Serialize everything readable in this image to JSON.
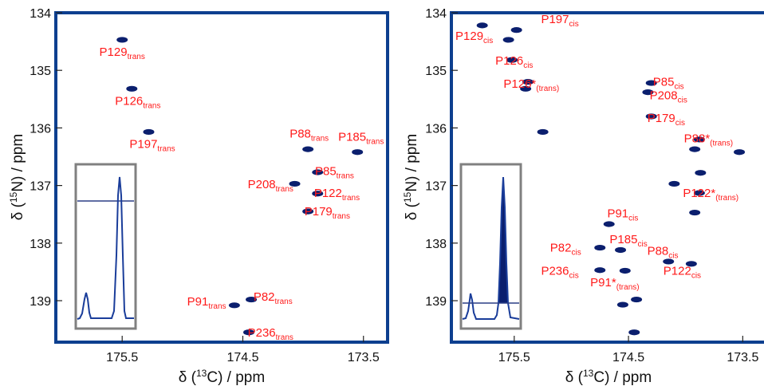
{
  "chart_data": [
    {
      "type": "scatter",
      "xlabel_parts": {
        "pre": "δ (",
        "sup": "13",
        "post": "C) / ppm"
      },
      "ylabel_parts": {
        "pre": "δ (",
        "sup": "15",
        "post": "N) / ppm"
      },
      "xlim": [
        176.05,
        173.3
      ],
      "ylim": [
        134.0,
        139.72
      ],
      "x_ticks": [
        "175.5",
        "174.5",
        "173.5"
      ],
      "x_tick_values": [
        175.5,
        174.5,
        173.5
      ],
      "y_ticks": [
        "134",
        "135",
        "136",
        "137",
        "138",
        "139"
      ],
      "y_tick_values": [
        134,
        135,
        136,
        137,
        138,
        139
      ],
      "peaks": [
        {
          "x": 175.5,
          "y": 134.47
        },
        {
          "x": 175.42,
          "y": 135.32
        },
        {
          "x": 175.28,
          "y": 136.07
        },
        {
          "x": 173.96,
          "y": 136.37
        },
        {
          "x": 173.55,
          "y": 136.42
        },
        {
          "x": 173.88,
          "y": 136.77
        },
        {
          "x": 174.07,
          "y": 136.97
        },
        {
          "x": 173.88,
          "y": 137.14
        },
        {
          "x": 173.96,
          "y": 137.45
        },
        {
          "x": 174.43,
          "y": 138.98
        },
        {
          "x": 174.57,
          "y": 139.08
        },
        {
          "x": 174.45,
          "y": 139.55
        }
      ],
      "annotations": [
        {
          "base": "P129",
          "sub": "trans",
          "x": 175.5,
          "y": 134.75
        },
        {
          "base": "P126",
          "sub": "trans",
          "x": 175.37,
          "y": 135.6
        },
        {
          "base": "P197",
          "sub": "trans",
          "x": 175.25,
          "y": 136.35
        },
        {
          "base": "P88",
          "sub": "trans",
          "x": 173.95,
          "y": 136.17
        },
        {
          "base": "P185",
          "sub": "trans",
          "x": 173.52,
          "y": 136.22
        },
        {
          "base": "P85",
          "sub": "trans",
          "x": 173.74,
          "y": 136.82
        },
        {
          "base": "P208",
          "sub": "trans",
          "x": 174.27,
          "y": 137.05
        },
        {
          "base": "P122",
          "sub": "trans",
          "x": 173.72,
          "y": 137.2
        },
        {
          "base": "P179",
          "sub": "trans",
          "x": 173.8,
          "y": 137.52
        },
        {
          "base": "P91",
          "sub": "trans",
          "x": 174.8,
          "y": 139.08
        },
        {
          "base": "P82",
          "sub": "trans",
          "x": 174.25,
          "y": 139.0
        },
        {
          "base": "P236",
          "sub": "trans",
          "x": 174.27,
          "y": 139.62
        }
      ]
    },
    {
      "type": "scatter",
      "xlabel_parts": {
        "pre": "δ (",
        "sup": "13",
        "post": "C) / ppm"
      },
      "ylabel_parts": {
        "pre": "δ (",
        "sup": "15",
        "post": "N) / ppm"
      },
      "xlim": [
        176.05,
        173.3
      ],
      "ylim": [
        134.0,
        139.72
      ],
      "x_ticks": [
        "175.5",
        "174.5",
        "173.5"
      ],
      "x_tick_values": [
        175.5,
        174.5,
        173.5
      ],
      "y_ticks": [
        "134",
        "135",
        "136",
        "137",
        "138",
        "139"
      ],
      "y_tick_values": [
        134,
        135,
        136,
        137,
        138,
        139
      ],
      "peaks": [
        {
          "x": 175.78,
          "y": 134.22
        },
        {
          "x": 175.55,
          "y": 134.47
        },
        {
          "x": 175.48,
          "y": 134.3
        },
        {
          "x": 175.52,
          "y": 134.82
        },
        {
          "x": 175.38,
          "y": 135.2
        },
        {
          "x": 175.4,
          "y": 135.32
        },
        {
          "x": 175.25,
          "y": 136.07
        },
        {
          "x": 174.3,
          "y": 135.22
        },
        {
          "x": 174.33,
          "y": 135.38
        },
        {
          "x": 174.3,
          "y": 135.8
        },
        {
          "x": 173.88,
          "y": 136.2
        },
        {
          "x": 173.92,
          "y": 136.37
        },
        {
          "x": 173.53,
          "y": 136.42
        },
        {
          "x": 173.87,
          "y": 136.78
        },
        {
          "x": 174.1,
          "y": 136.97
        },
        {
          "x": 173.88,
          "y": 137.13
        },
        {
          "x": 173.92,
          "y": 137.47
        },
        {
          "x": 174.67,
          "y": 137.67
        },
        {
          "x": 174.75,
          "y": 138.08
        },
        {
          "x": 174.57,
          "y": 138.12
        },
        {
          "x": 174.15,
          "y": 138.32
        },
        {
          "x": 173.95,
          "y": 138.36
        },
        {
          "x": 174.75,
          "y": 138.47
        },
        {
          "x": 174.53,
          "y": 138.48
        },
        {
          "x": 174.43,
          "y": 138.98
        },
        {
          "x": 174.55,
          "y": 139.07
        },
        {
          "x": 174.45,
          "y": 139.55
        }
      ],
      "annotations": [
        {
          "base": "P197",
          "sub": "cis",
          "x": 175.1,
          "y": 134.18
        },
        {
          "base": "P129",
          "sub": "cis",
          "x": 175.85,
          "y": 134.47
        },
        {
          "base": "P126",
          "sub": "cis",
          "x": 175.5,
          "y": 134.9
        },
        {
          "base": "P126*",
          "sub": "(trans)",
          "x": 175.35,
          "y": 135.3
        },
        {
          "base": "P85",
          "sub": "cis",
          "x": 174.15,
          "y": 135.27
        },
        {
          "base": "P208",
          "sub": "cis",
          "x": 174.15,
          "y": 135.5
        },
        {
          "base": "P179",
          "sub": "cis",
          "x": 174.17,
          "y": 135.9
        },
        {
          "base": "P88*",
          "sub": "(trans)",
          "x": 173.8,
          "y": 136.25
        },
        {
          "base": "P122*",
          "sub": "(trans)",
          "x": 173.78,
          "y": 137.2
        },
        {
          "base": "P91",
          "sub": "cis",
          "x": 174.55,
          "y": 137.55
        },
        {
          "base": "P82",
          "sub": "cis",
          "x": 175.05,
          "y": 138.15
        },
        {
          "base": "P185",
          "sub": "cis",
          "x": 174.5,
          "y": 138.0
        },
        {
          "base": "P88",
          "sub": "cis",
          "x": 174.2,
          "y": 138.2
        },
        {
          "base": "P236",
          "sub": "cis",
          "x": 175.1,
          "y": 138.55
        },
        {
          "base": "P91*",
          "sub": "(trans)",
          "x": 174.62,
          "y": 138.75
        },
        {
          "base": "P122",
          "sub": "cis",
          "x": 174.03,
          "y": 138.55
        }
      ]
    }
  ],
  "colors": {
    "frame": "#0d3f8f",
    "peak": "#0b1f6e",
    "label": "#ff1a1a",
    "inset_frame": "#808080",
    "inset_trace": "#1a3d9a",
    "inset_fill": "#0b1f6e",
    "inset_line": "#2b3e85"
  }
}
